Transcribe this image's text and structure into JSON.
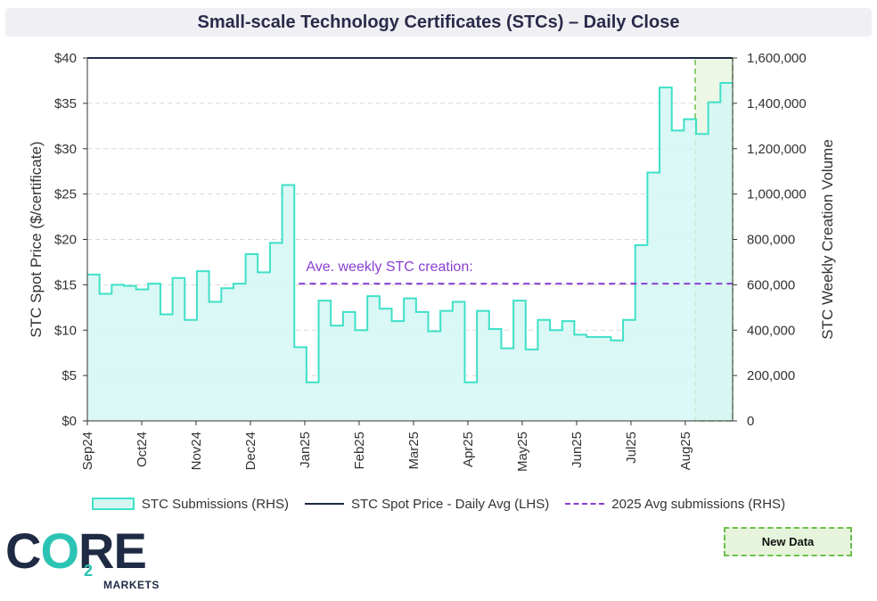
{
  "title": "Small-scale Technology Certificates (STCs) – Daily Close",
  "legend": {
    "submissions": "STC Submissions (RHS)",
    "spot": "STC Spot Price - Daily Avg (LHS)",
    "avg": "2025 Avg submissions (RHS)"
  },
  "logo": {
    "text_c": "C",
    "text_o": "O",
    "text_re": "RE",
    "sub": "2",
    "markets": "MARKETS"
  },
  "new_data_label": "New Data",
  "colors": {
    "submissions_line": "#3fe0c8",
    "submissions_fill": "#d4f7f3",
    "spot_line": "#1f2a44",
    "avg_line": "#8a3fd1",
    "new_data_fill": "#e6f4dc",
    "new_data_border": "#6cc04a"
  },
  "chart_data": {
    "type": "line",
    "ylabel": "STC Spot Price ($/certificate)",
    "y2label": "STC Weekly Creation Volume",
    "ylim": [
      0,
      40
    ],
    "y2lim": [
      0,
      1600000
    ],
    "y_ticks": [
      "$0",
      "$5",
      "$10",
      "$15",
      "$20",
      "$25",
      "$30",
      "$35",
      "$40"
    ],
    "y2_ticks": [
      "0",
      "200,000",
      "400,000",
      "600,000",
      "800,000",
      "1,000,000",
      "1,200,000",
      "1,400,000",
      "1,600,000"
    ],
    "x_ticks": [
      "Sep24",
      "Oct24",
      "Nov24",
      "Dec24",
      "Jan25",
      "Feb25",
      "Mar25",
      "Apr25",
      "May25",
      "Jun25",
      "Jul25",
      "Aug25"
    ],
    "annotation": "Ave. weekly STC creation:",
    "grid": "horizontal dashed",
    "series": [
      {
        "name": "STC Submissions (RHS)",
        "axis": "right",
        "style": "step-area",
        "values": [
          645000,
          560000,
          600000,
          595000,
          580000,
          605000,
          470000,
          630000,
          445000,
          660000,
          525000,
          585000,
          605000,
          735000,
          655000,
          785000,
          1040000,
          325000,
          170000,
          530000,
          420000,
          480000,
          400000,
          550000,
          495000,
          440000,
          540000,
          480000,
          395000,
          485000,
          525000,
          170000,
          485000,
          405000,
          320000,
          530000,
          315000,
          445000,
          400000,
          440000,
          380000,
          370000,
          370000,
          355000,
          445000,
          775000,
          1095000,
          1470000,
          1280000,
          1330000,
          1265000,
          1405000,
          1490000
        ]
      },
      {
        "name": "STC Spot Price - Daily Avg (LHS)",
        "axis": "left",
        "style": "line",
        "values": [
          40,
          40
        ]
      },
      {
        "name": "2025 Avg submissions (RHS)",
        "axis": "right",
        "style": "dashed",
        "values": [
          605000,
          605000
        ]
      }
    ],
    "highlight": "New Data"
  }
}
